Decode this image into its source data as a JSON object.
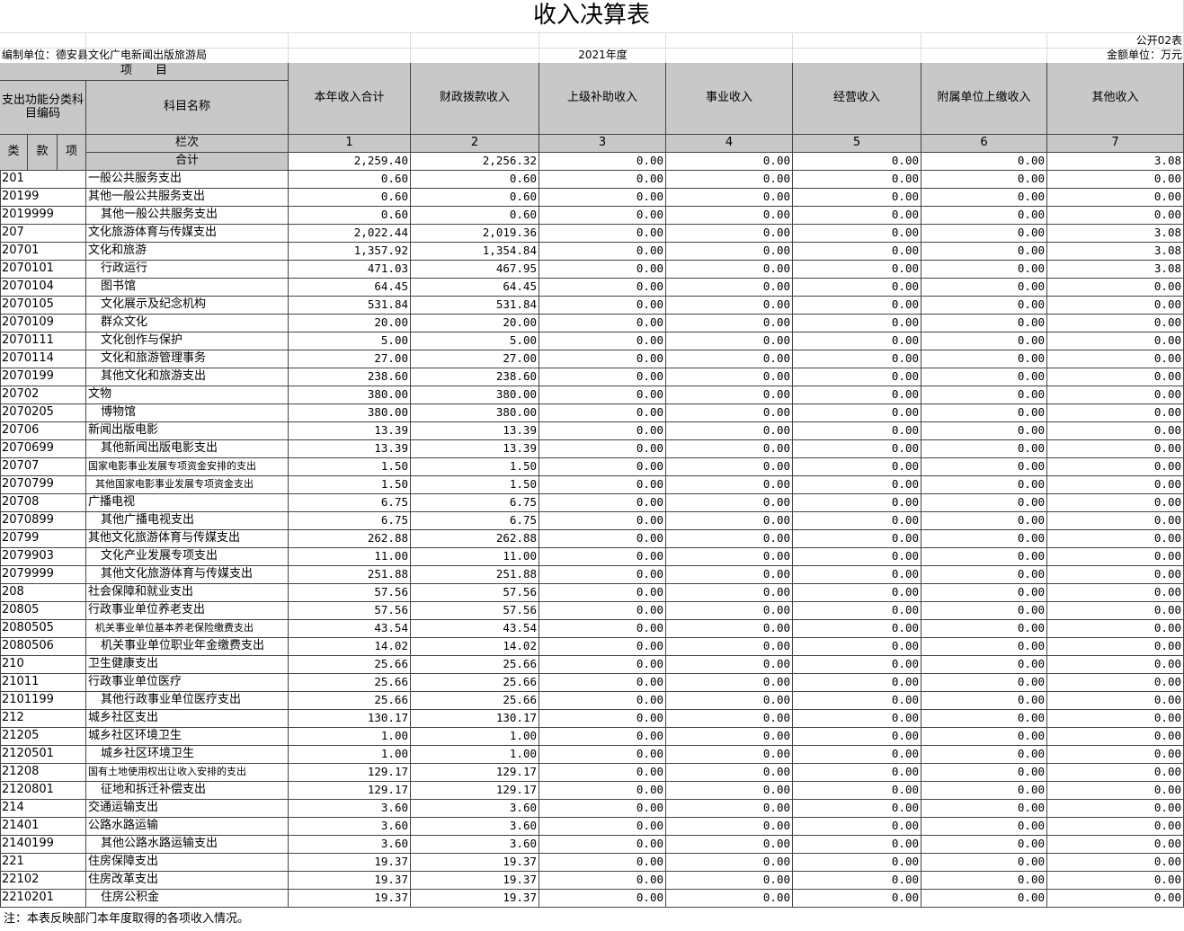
{
  "title": "收入决算表",
  "form_no": "公开02表",
  "unit": "编制单位：德安县文化广电新闻出版旅游局",
  "year": "2021年度",
  "currency": "金额单位：万元",
  "header": {
    "item": "项　　目",
    "code_group": "支出功能分类科目编码",
    "name": "科目名称",
    "columns": [
      "本年收入合计",
      "财政拨款收入",
      "上级补助收入",
      "事业收入",
      "经营收入",
      "附属单位上缴收入",
      "其他收入"
    ],
    "row_no": "栏次",
    "col_numbers": [
      "1",
      "2",
      "3",
      "4",
      "5",
      "6",
      "7"
    ],
    "sub_codes": [
      "类",
      "款",
      "项"
    ]
  },
  "total": {
    "label": "合计",
    "values": [
      "2,259.40",
      "2,256.32",
      "0.00",
      "0.00",
      "0.00",
      "0.00",
      "3.08"
    ]
  },
  "rows": [
    [
      "201",
      "一般公共服务支出",
      "0.60",
      "0.60",
      "0.00",
      "0.00",
      "0.00",
      "0.00",
      "0.00"
    ],
    [
      "20199",
      "其他一般公共服务支出",
      "0.60",
      "0.60",
      "0.00",
      "0.00",
      "0.00",
      "0.00",
      "0.00"
    ],
    [
      "2019999",
      "其他一般公共服务支出",
      "0.60",
      "0.60",
      "0.00",
      "0.00",
      "0.00",
      "0.00",
      "0.00"
    ],
    [
      "207",
      "文化旅游体育与传媒支出",
      "2,022.44",
      "2,019.36",
      "0.00",
      "0.00",
      "0.00",
      "0.00",
      "3.08"
    ],
    [
      "20701",
      "文化和旅游",
      "1,357.92",
      "1,354.84",
      "0.00",
      "0.00",
      "0.00",
      "0.00",
      "3.08"
    ],
    [
      "2070101",
      "行政运行",
      "471.03",
      "467.95",
      "0.00",
      "0.00",
      "0.00",
      "0.00",
      "3.08"
    ],
    [
      "2070104",
      "图书馆",
      "64.45",
      "64.45",
      "0.00",
      "0.00",
      "0.00",
      "0.00",
      "0.00"
    ],
    [
      "2070105",
      "文化展示及纪念机构",
      "531.84",
      "531.84",
      "0.00",
      "0.00",
      "0.00",
      "0.00",
      "0.00"
    ],
    [
      "2070109",
      "群众文化",
      "20.00",
      "20.00",
      "0.00",
      "0.00",
      "0.00",
      "0.00",
      "0.00"
    ],
    [
      "2070111",
      "文化创作与保护",
      "5.00",
      "5.00",
      "0.00",
      "0.00",
      "0.00",
      "0.00",
      "0.00"
    ],
    [
      "2070114",
      "文化和旅游管理事务",
      "27.00",
      "27.00",
      "0.00",
      "0.00",
      "0.00",
      "0.00",
      "0.00"
    ],
    [
      "2070199",
      "其他文化和旅游支出",
      "238.60",
      "238.60",
      "0.00",
      "0.00",
      "0.00",
      "0.00",
      "0.00"
    ],
    [
      "20702",
      "文物",
      "380.00",
      "380.00",
      "0.00",
      "0.00",
      "0.00",
      "0.00",
      "0.00"
    ],
    [
      "2070205",
      "博物馆",
      "380.00",
      "380.00",
      "0.00",
      "0.00",
      "0.00",
      "0.00",
      "0.00"
    ],
    [
      "20706",
      "新闻出版电影",
      "13.39",
      "13.39",
      "0.00",
      "0.00",
      "0.00",
      "0.00",
      "0.00"
    ],
    [
      "2070699",
      "其他新闻出版电影支出",
      "13.39",
      "13.39",
      "0.00",
      "0.00",
      "0.00",
      "0.00",
      "0.00"
    ],
    [
      "20707",
      "国家电影事业发展专项资金安排的支出",
      "1.50",
      "1.50",
      "0.00",
      "0.00",
      "0.00",
      "0.00",
      "0.00"
    ],
    [
      "2070799",
      "其他国家电影事业发展专项资金支出",
      "1.50",
      "1.50",
      "0.00",
      "0.00",
      "0.00",
      "0.00",
      "0.00"
    ],
    [
      "20708",
      "广播电视",
      "6.75",
      "6.75",
      "0.00",
      "0.00",
      "0.00",
      "0.00",
      "0.00"
    ],
    [
      "2070899",
      "其他广播电视支出",
      "6.75",
      "6.75",
      "0.00",
      "0.00",
      "0.00",
      "0.00",
      "0.00"
    ],
    [
      "20799",
      "其他文化旅游体育与传媒支出",
      "262.88",
      "262.88",
      "0.00",
      "0.00",
      "0.00",
      "0.00",
      "0.00"
    ],
    [
      "2079903",
      "文化产业发展专项支出",
      "11.00",
      "11.00",
      "0.00",
      "0.00",
      "0.00",
      "0.00",
      "0.00"
    ],
    [
      "2079999",
      "其他文化旅游体育与传媒支出",
      "251.88",
      "251.88",
      "0.00",
      "0.00",
      "0.00",
      "0.00",
      "0.00"
    ],
    [
      "208",
      "社会保障和就业支出",
      "57.56",
      "57.56",
      "0.00",
      "0.00",
      "0.00",
      "0.00",
      "0.00"
    ],
    [
      "20805",
      "行政事业单位养老支出",
      "57.56",
      "57.56",
      "0.00",
      "0.00",
      "0.00",
      "0.00",
      "0.00"
    ],
    [
      "2080505",
      "机关事业单位基本养老保险缴费支出",
      "43.54",
      "43.54",
      "0.00",
      "0.00",
      "0.00",
      "0.00",
      "0.00"
    ],
    [
      "2080506",
      "机关事业单位职业年金缴费支出",
      "14.02",
      "14.02",
      "0.00",
      "0.00",
      "0.00",
      "0.00",
      "0.00"
    ],
    [
      "210",
      "卫生健康支出",
      "25.66",
      "25.66",
      "0.00",
      "0.00",
      "0.00",
      "0.00",
      "0.00"
    ],
    [
      "21011",
      "行政事业单位医疗",
      "25.66",
      "25.66",
      "0.00",
      "0.00",
      "0.00",
      "0.00",
      "0.00"
    ],
    [
      "2101199",
      "其他行政事业单位医疗支出",
      "25.66",
      "25.66",
      "0.00",
      "0.00",
      "0.00",
      "0.00",
      "0.00"
    ],
    [
      "212",
      "城乡社区支出",
      "130.17",
      "130.17",
      "0.00",
      "0.00",
      "0.00",
      "0.00",
      "0.00"
    ],
    [
      "21205",
      "城乡社区环境卫生",
      "1.00",
      "1.00",
      "0.00",
      "0.00",
      "0.00",
      "0.00",
      "0.00"
    ],
    [
      "2120501",
      "城乡社区环境卫生",
      "1.00",
      "1.00",
      "0.00",
      "0.00",
      "0.00",
      "0.00",
      "0.00"
    ],
    [
      "21208",
      "国有土地使用权出让收入安排的支出",
      "129.17",
      "129.17",
      "0.00",
      "0.00",
      "0.00",
      "0.00",
      "0.00"
    ],
    [
      "2120801",
      "征地和拆迁补偿支出",
      "129.17",
      "129.17",
      "0.00",
      "0.00",
      "0.00",
      "0.00",
      "0.00"
    ],
    [
      "214",
      "交通运输支出",
      "3.60",
      "3.60",
      "0.00",
      "0.00",
      "0.00",
      "0.00",
      "0.00"
    ],
    [
      "21401",
      "公路水路运输",
      "3.60",
      "3.60",
      "0.00",
      "0.00",
      "0.00",
      "0.00",
      "0.00"
    ],
    [
      "2140199",
      "其他公路水路运输支出",
      "3.60",
      "3.60",
      "0.00",
      "0.00",
      "0.00",
      "0.00",
      "0.00"
    ],
    [
      "221",
      "住房保障支出",
      "19.37",
      "19.37",
      "0.00",
      "0.00",
      "0.00",
      "0.00",
      "0.00"
    ],
    [
      "22102",
      "住房改革支出",
      "19.37",
      "19.37",
      "0.00",
      "0.00",
      "0.00",
      "0.00",
      "0.00"
    ],
    [
      "2210201",
      "住房公积金",
      "19.37",
      "19.37",
      "0.00",
      "0.00",
      "0.00",
      "0.00",
      "0.00"
    ]
  ],
  "note": "注：本表反映部门本年度取得的各项收入情况。"
}
